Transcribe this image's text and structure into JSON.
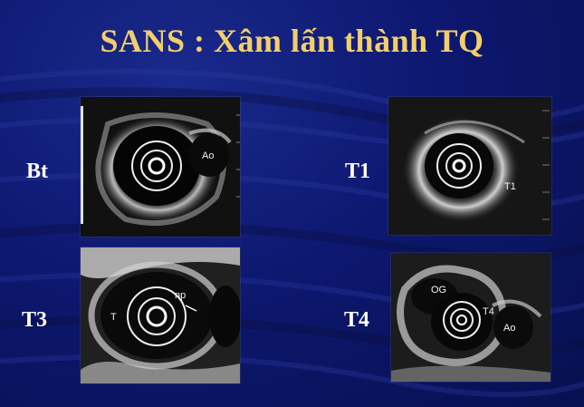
{
  "slide": {
    "title": "SANS : Xâm lấn thành TQ",
    "colors": {
      "title": "#f2cf6a",
      "label": "#ffffff",
      "background": "#0d1870"
    }
  },
  "panels": [
    {
      "id": "bt",
      "label": "Bt",
      "annotations": [
        "Ao"
      ]
    },
    {
      "id": "t1",
      "label": "T1",
      "annotations": [
        "T1"
      ]
    },
    {
      "id": "t3",
      "label": "T3",
      "annotations": [
        "np",
        "T"
      ]
    },
    {
      "id": "t4",
      "label": "T4",
      "annotations": [
        "OG",
        "T4",
        "Ao"
      ]
    }
  ]
}
